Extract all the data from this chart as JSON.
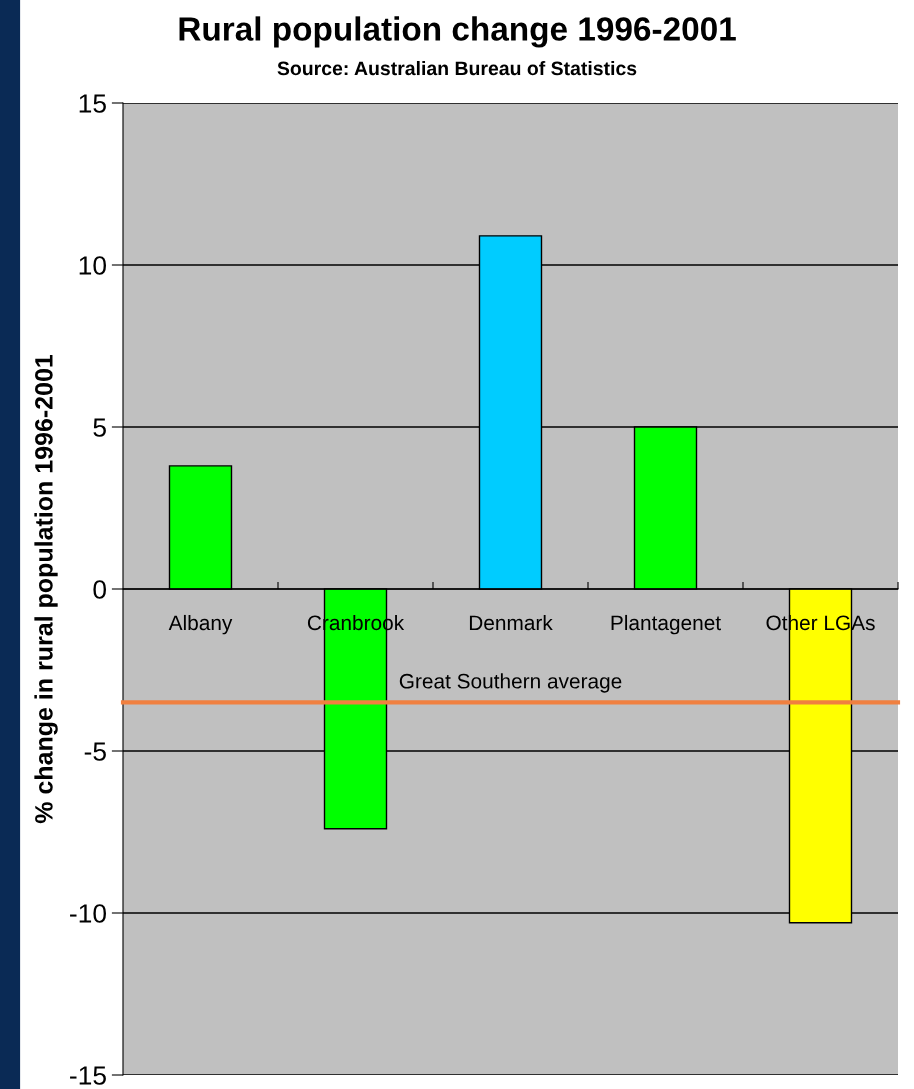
{
  "chart_data": {
    "type": "bar",
    "title": "Rural population change 1996-2001",
    "subtitle": "Source: Australian Bureau of Statistics",
    "ylabel": "% change in rural population 1996-2001",
    "categories": [
      "Albany",
      "Cranbrook",
      "Denmark",
      "Plantagenet",
      "Other LGAs"
    ],
    "values": [
      3.8,
      -7.4,
      10.9,
      5.0,
      -10.3
    ],
    "colors": [
      "#00ff00",
      "#00ff00",
      "#00ccff",
      "#00ff00",
      "#ffff00"
    ],
    "ylim": [
      -15,
      15
    ],
    "yticks": [
      -15,
      -10,
      -5,
      0,
      5,
      10,
      15
    ],
    "grid": "y",
    "ref_lines": [
      {
        "axis": "y",
        "value": -3.5,
        "label": "Great Southern average",
        "color": "#f08040"
      }
    ]
  }
}
